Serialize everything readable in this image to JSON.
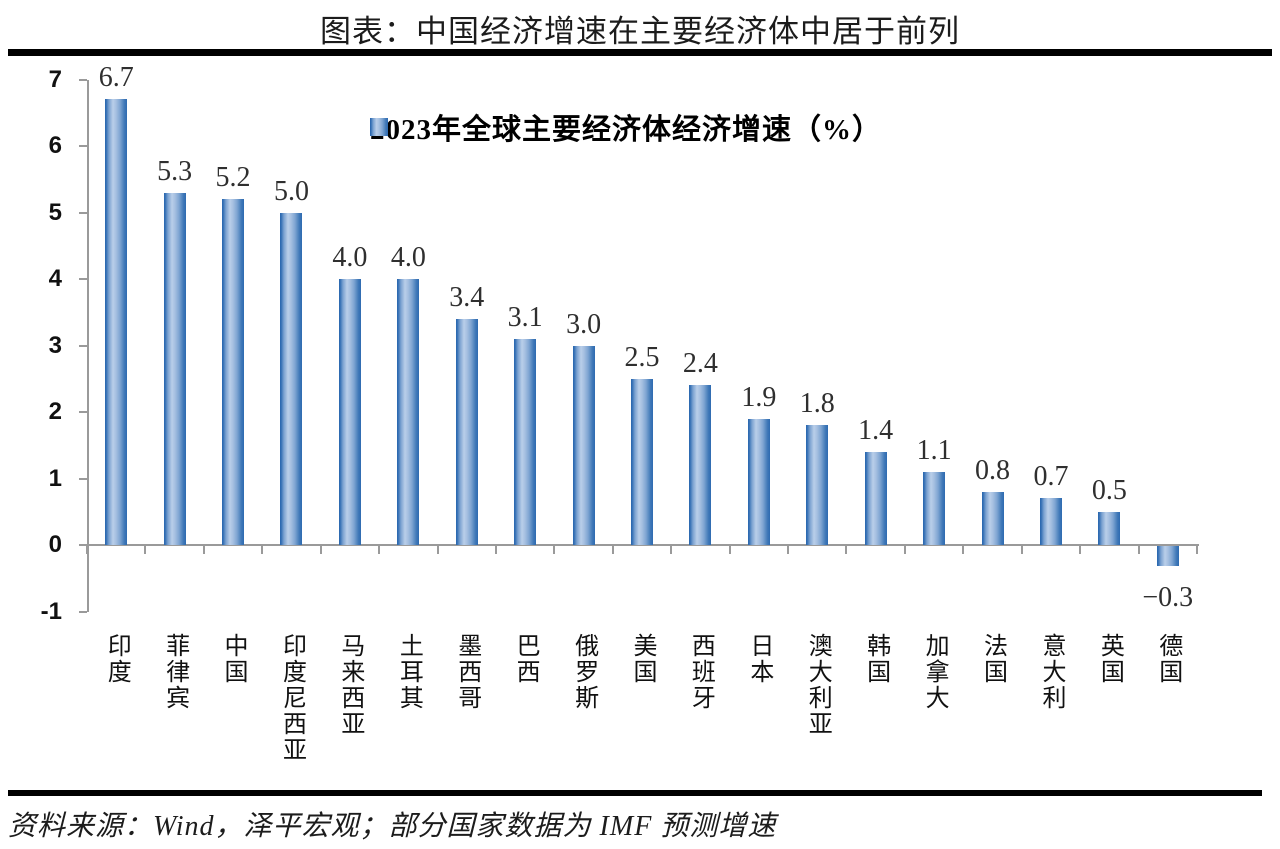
{
  "title": "图表：中国经济增速在主要经济体中居于前列",
  "footer": "资料来源：Wind，泽平宏观；部分国家数据为 IMF 预测增速",
  "chart_data": {
    "type": "bar",
    "title": "2023年全球主要经济体经济增速（%）",
    "legend": "2023年全球主要经济体经济增速（%）",
    "legend_position": "top-center",
    "categories": [
      "印度",
      "菲律宾",
      "中国",
      "印度尼西亚",
      "马来西亚",
      "土耳其",
      "墨西哥",
      "巴西",
      "俄罗斯",
      "美国",
      "西班牙",
      "日本",
      "澳大利亚",
      "韩国",
      "加拿大",
      "法国",
      "意大利",
      "英国",
      "德国"
    ],
    "values": [
      6.7,
      5.3,
      5.2,
      5.0,
      4.0,
      4.0,
      3.4,
      3.1,
      3.0,
      2.5,
      2.4,
      1.9,
      1.8,
      1.4,
      1.1,
      0.8,
      0.7,
      0.5,
      -0.3
    ],
    "data_labels": [
      "6.7",
      "5.3",
      "5.2",
      "5.0",
      "4.0",
      "4.0",
      "3.4",
      "3.1",
      "3.0",
      "2.5",
      "2.4",
      "1.9",
      "1.8",
      "1.4",
      "1.1",
      "0.8",
      "0.7",
      "0.5",
      "−0.3"
    ],
    "xlabel": "",
    "ylabel": "",
    "ylim": [
      -1,
      7
    ],
    "yticks": [
      7,
      6,
      5,
      4,
      3,
      2,
      1,
      0,
      -1
    ],
    "grid": false,
    "colors": {
      "bar_edge": "#2d6ab1",
      "bar_highlight": "#b9cee9",
      "axis": "#9a9a9a",
      "value_label": "#2f2f2f",
      "text": "#111111"
    }
  }
}
